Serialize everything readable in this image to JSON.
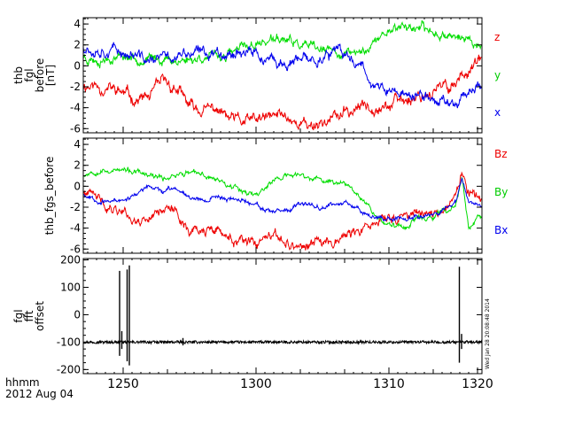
{
  "chart_data": [
    {
      "type": "line",
      "panel": "thb_fgl_before",
      "ylabel": [
        "thb",
        "fgl",
        "before",
        "[nT]"
      ],
      "ylim": [
        -6.4,
        4.6
      ],
      "yticks": [
        -6,
        -4,
        -2,
        0,
        2,
        4
      ],
      "ytick_labels": [
        "-6",
        "-4",
        "-2",
        "0",
        "2",
        "4"
      ],
      "xlim": [
        -9,
        81
      ],
      "legend_position": "right",
      "series": [
        {
          "name": "z",
          "color": "#ee0000",
          "x": [
            -9,
            -6,
            -3,
            0,
            3,
            6,
            9,
            12,
            15,
            18,
            21,
            24,
            27,
            30,
            33,
            36,
            39,
            42,
            45,
            48,
            51,
            54,
            57,
            60,
            63,
            66,
            69,
            72,
            75,
            78,
            81
          ],
          "values": [
            -1.8,
            -1.9,
            -2.2,
            -2.6,
            -3.2,
            -3.0,
            -1.6,
            -2.2,
            -3.9,
            -4.3,
            -4.1,
            -5.1,
            -5.4,
            -5.2,
            -5.0,
            -4.6,
            -5.3,
            -5.7,
            -5.3,
            -4.9,
            -4.4,
            -3.9,
            -3.6,
            -3.8,
            -3.3,
            -2.9,
            -2.5,
            -2.2,
            -1.6,
            -0.2,
            0.5
          ],
          "noise": 0.65,
          "seed": 11
        },
        {
          "name": "y",
          "color": "#00dd00",
          "x": [
            -9,
            -6,
            -3,
            0,
            3,
            6,
            9,
            12,
            15,
            18,
            21,
            24,
            27,
            30,
            33,
            36,
            39,
            42,
            45,
            48,
            51,
            54,
            57,
            60,
            63,
            66,
            69,
            72,
            75,
            78,
            81
          ],
          "values": [
            0.9,
            0.6,
            0.8,
            1.0,
            0.8,
            0.6,
            0.7,
            0.5,
            0.6,
            0.9,
            0.8,
            1.1,
            1.7,
            2.1,
            2.4,
            2.5,
            2.1,
            1.7,
            1.4,
            1.3,
            1.1,
            1.4,
            2.3,
            3.5,
            3.9,
            3.6,
            3.3,
            3.1,
            2.9,
            2.4,
            1.9
          ],
          "noise": 0.5,
          "seed": 23
        },
        {
          "name": "x",
          "color": "#0000ee",
          "x": [
            -9,
            -6,
            -3,
            0,
            3,
            6,
            9,
            12,
            15,
            18,
            21,
            24,
            27,
            30,
            33,
            36,
            39,
            42,
            45,
            48,
            51,
            54,
            57,
            60,
            63,
            66,
            69,
            72,
            75,
            78,
            81
          ],
          "values": [
            1.9,
            1.7,
            1.6,
            1.3,
            0.9,
            0.4,
            0.8,
            0.9,
            1.1,
            1.2,
            1.4,
            1.3,
            1.5,
            1.1,
            0.3,
            0.1,
            0.3,
            0.5,
            0.9,
            1.3,
            0.7,
            0.2,
            -2.0,
            -2.5,
            -2.7,
            -2.9,
            -3.1,
            -3.3,
            -3.5,
            -2.2,
            -1.9
          ],
          "noise": 0.6,
          "seed": 37
        }
      ]
    },
    {
      "type": "line",
      "panel": "thb_fgs_before",
      "ylabel": [
        "thb_fgs_before"
      ],
      "ylim": [
        -6.4,
        4.6
      ],
      "yticks": [
        -6,
        -4,
        -2,
        0,
        2,
        4
      ],
      "ytick_labels": [
        "-6",
        "-4",
        "-2",
        "0",
        "2",
        "4"
      ],
      "xlim": [
        -9,
        81
      ],
      "legend_position": "right",
      "series": [
        {
          "name": "Bz",
          "color": "#ee0000",
          "x": [
            -9,
            -6,
            -3,
            0,
            3,
            6,
            9,
            12,
            15,
            18,
            21,
            24,
            27,
            30,
            33,
            36,
            39,
            42,
            45,
            48,
            51,
            54,
            57,
            60,
            63,
            66,
            69,
            72,
            75,
            76.5,
            78,
            81
          ],
          "values": [
            -0.6,
            -1.2,
            -2.0,
            -2.2,
            -3.4,
            -2.8,
            -1.9,
            -2.6,
            -4.1,
            -4.3,
            -4.3,
            -5.0,
            -5.5,
            -5.6,
            -5.0,
            -5.2,
            -5.8,
            -5.7,
            -5.3,
            -5.0,
            -4.5,
            -4.4,
            -3.4,
            -3.1,
            -2.8,
            -2.7,
            -2.5,
            -2.2,
            -1.2,
            1.3,
            -0.5,
            -1.2
          ],
          "noise": 0.55,
          "seed": 41
        },
        {
          "name": "By",
          "color": "#00dd00",
          "x": [
            -9,
            -6,
            -3,
            0,
            3,
            6,
            9,
            12,
            15,
            18,
            21,
            24,
            27,
            30,
            33,
            36,
            39,
            42,
            45,
            48,
            51,
            54,
            57,
            60,
            63,
            66,
            69,
            72,
            75,
            76.5,
            78,
            81
          ],
          "values": [
            1.1,
            1.6,
            1.5,
            1.5,
            1.3,
            0.9,
            0.7,
            1.2,
            1.3,
            1.0,
            0.7,
            0.2,
            -0.3,
            -0.9,
            0.3,
            0.9,
            1.1,
            0.8,
            0.5,
            0.4,
            0.2,
            -1.0,
            -2.8,
            -3.7,
            -3.9,
            -3.2,
            -3.0,
            -2.6,
            -2.1,
            1.0,
            -3.9,
            -3.0
          ],
          "noise": 0.3,
          "seed": 53
        },
        {
          "name": "Bx",
          "color": "#0000ee",
          "x": [
            -9,
            -6,
            -3,
            0,
            3,
            6,
            9,
            12,
            15,
            18,
            21,
            24,
            27,
            30,
            33,
            36,
            39,
            42,
            45,
            48,
            51,
            54,
            57,
            60,
            63,
            66,
            69,
            72,
            75,
            76.5,
            78,
            81
          ],
          "values": [
            -0.7,
            -1.3,
            -1.5,
            -1.3,
            -0.7,
            -0.1,
            -0.5,
            -0.2,
            -0.9,
            -1.3,
            -1.0,
            -1.2,
            -1.3,
            -1.6,
            -2.6,
            -2.5,
            -2.0,
            -1.7,
            -1.9,
            -1.7,
            -1.6,
            -2.3,
            -2.9,
            -3.1,
            -3.0,
            -2.9,
            -2.6,
            -2.3,
            -1.5,
            0.6,
            -1.6,
            -1.8
          ],
          "noise": 0.25,
          "seed": 67
        }
      ]
    },
    {
      "type": "line",
      "panel": "fgl_fft_offset",
      "ylabel": [
        "fgl",
        "fft",
        "offset"
      ],
      "ylim": [
        -215,
        205
      ],
      "yticks": [
        -200,
        -100,
        0,
        100,
        200
      ],
      "ytick_labels": [
        "-200",
        "-100",
        "0",
        "100",
        "200"
      ],
      "xlim": [
        -9,
        81
      ],
      "baseline": -100,
      "series": [
        {
          "name": "offset",
          "color": "#000000",
          "spikes": [
            {
              "x": -0.8,
              "top": 160,
              "bottom": -150
            },
            {
              "x": -0.3,
              "top": -60,
              "bottom": -125
            },
            {
              "x": 0.9,
              "top": 165,
              "bottom": -170
            },
            {
              "x": 1.4,
              "top": 180,
              "bottom": -185
            },
            {
              "x": 13.5,
              "top": -85,
              "bottom": -112
            },
            {
              "x": 75.9,
              "top": 175,
              "bottom": -175
            },
            {
              "x": 76.4,
              "top": -70,
              "bottom": -125
            }
          ]
        }
      ]
    }
  ],
  "x_axis": {
    "ticks": [
      0,
      10,
      20,
      30,
      40,
      50,
      60,
      70,
      80
    ],
    "tick_labels": [
      "1250",
      "1300",
      "1310",
      "1320"
    ],
    "major_ticks": [
      0,
      30,
      60,
      80
    ],
    "label_line1": "hhmm",
    "label_line2": "2012 Aug 04"
  },
  "timestamp": "Wed Jan 28 20:08:48 2014"
}
